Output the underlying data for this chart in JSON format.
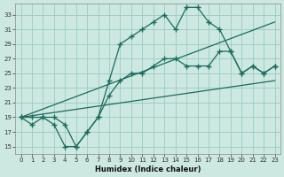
{
  "xlabel": "Humidex (Indice chaleur)",
  "ylabel": "",
  "bg_color": "#cce8e0",
  "grid_color": "#99ccc4",
  "line_color": "#1a6b5e",
  "xlim": [
    -0.5,
    23.5
  ],
  "ylim": [
    14,
    34.5
  ],
  "yticks": [
    15,
    17,
    19,
    21,
    23,
    25,
    27,
    29,
    31,
    33
  ],
  "xticks": [
    0,
    1,
    2,
    3,
    4,
    5,
    6,
    7,
    8,
    9,
    10,
    11,
    12,
    13,
    14,
    15,
    16,
    17,
    18,
    19,
    20,
    21,
    22,
    23
  ],
  "series": [
    {
      "x": [
        0,
        1,
        2,
        3,
        4,
        5,
        6,
        7,
        8,
        9,
        10,
        11,
        12,
        13,
        14,
        15,
        16,
        17,
        18,
        19,
        20,
        21,
        22,
        23
      ],
      "y": [
        19,
        19,
        19,
        19,
        18,
        15,
        17,
        19,
        24,
        29,
        30,
        31,
        32,
        33,
        31,
        34,
        34,
        32,
        31,
        28,
        25,
        26,
        25,
        26
      ],
      "marker": "+",
      "markersize": 4,
      "lw": 0.9
    },
    {
      "x": [
        0,
        1,
        2,
        3,
        4,
        5,
        6,
        7,
        8,
        9,
        10,
        11,
        12,
        13,
        14,
        15,
        16,
        17,
        18,
        19,
        20,
        21,
        22,
        23
      ],
      "y": [
        19,
        18,
        19,
        18,
        15,
        15,
        17,
        19,
        22,
        24,
        25,
        25,
        26,
        27,
        27,
        26,
        26,
        26,
        28,
        28,
        25,
        26,
        25,
        26
      ],
      "marker": "+",
      "markersize": 4,
      "lw": 0.9
    },
    {
      "x": [
        0,
        23
      ],
      "y": [
        19,
        32
      ],
      "marker": null,
      "markersize": 0,
      "lw": 0.9
    },
    {
      "x": [
        0,
        23
      ],
      "y": [
        19,
        24
      ],
      "marker": null,
      "markersize": 0,
      "lw": 0.9
    }
  ]
}
